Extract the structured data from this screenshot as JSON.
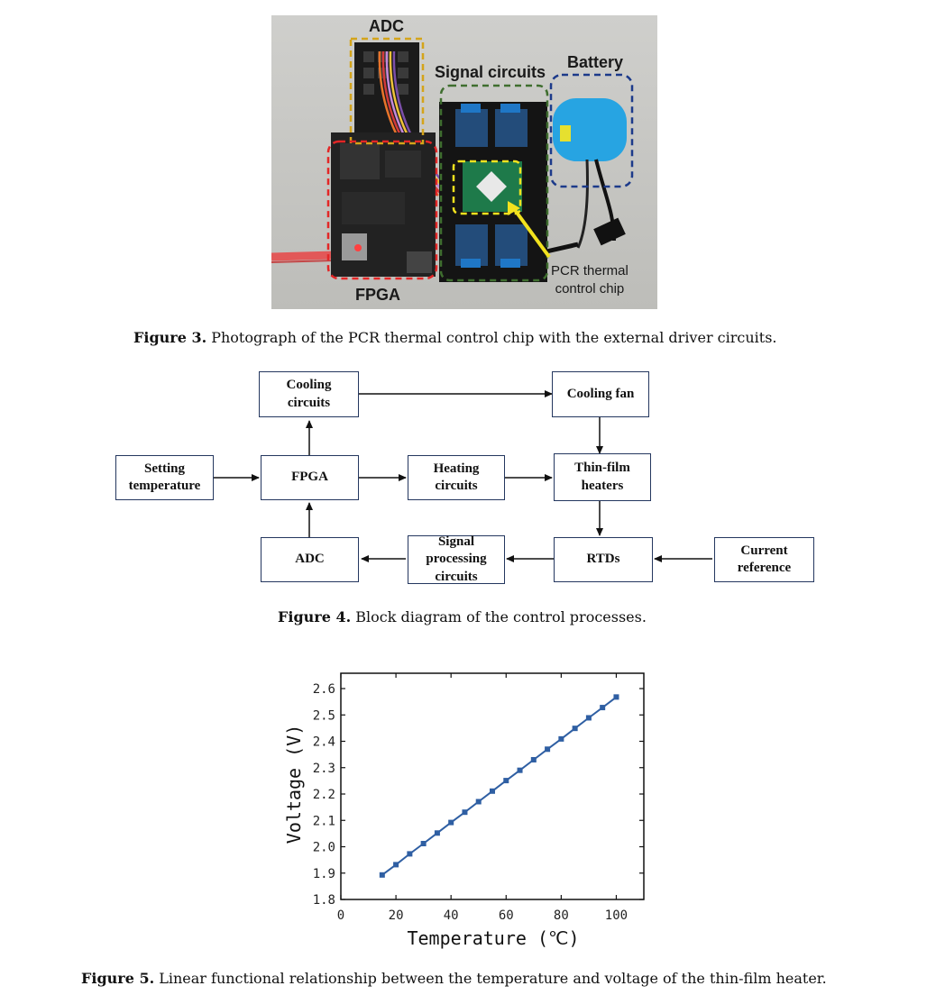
{
  "figure3": {
    "labels": {
      "adc": "ADC",
      "signal_circuits": "Signal circuits",
      "battery": "Battery",
      "fpga": "FPGA",
      "pcr_chip": "PCR thermal\ncontrol chip"
    },
    "caption_label": "Figure 3.",
    "caption_text": " Photograph of the PCR thermal control chip with the external driver circuits."
  },
  "figure4": {
    "blocks": {
      "setting_temperature": "Setting\ntemperature",
      "cooling_circuits": "Cooling\ncircuits",
      "cooling_fan": "Cooling fan",
      "fpga": "FPGA",
      "heating_circuits": "Heating\ncircuits",
      "thin_film_heaters": "Thin-film\nheaters",
      "adc": "ADC",
      "signal_processing": "Signal\nprocessing\ncircuits",
      "rtds": "RTDs",
      "current_reference": "Current\nreference"
    },
    "caption_label": "Figure 4.",
    "caption_text": " Block diagram of the control processes."
  },
  "figure5": {
    "caption_label": "Figure 5.",
    "caption_text": " Linear functional relationship between the temperature and voltage of the thin-film heater."
  },
  "colors": {
    "series": "#2f5fa3",
    "box_border": "#24375f",
    "adc_box": "#d4a41a",
    "fpga_box": "#e32626",
    "signal_box": "#3f6e2f",
    "battery_box": "#1c3a8a",
    "chip_box": "#f2e21e"
  },
  "chart_data": {
    "type": "line",
    "xlabel": "Temperature (℃)",
    "ylabel": "Voltage (V)",
    "xlim": [
      0,
      110
    ],
    "ylim": [
      1.8,
      2.6
    ],
    "x_ticks": [
      "0",
      "20",
      "40",
      "60",
      "80",
      "100"
    ],
    "y_ticks": [
      "1.8",
      "1.9",
      "2.0",
      "2.1",
      "2.2",
      "2.3",
      "2.4",
      "2.5",
      "2.6"
    ],
    "grid": false,
    "x": [
      15,
      20,
      25,
      30,
      35,
      40,
      45,
      50,
      55,
      60,
      65,
      70,
      75,
      80,
      85,
      90,
      95,
      100
    ],
    "y": [
      1.893,
      1.932,
      1.973,
      2.012,
      2.052,
      2.092,
      2.131,
      2.171,
      2.211,
      2.251,
      2.29,
      2.33,
      2.37,
      2.409,
      2.449,
      2.489,
      2.528,
      2.568
    ]
  }
}
